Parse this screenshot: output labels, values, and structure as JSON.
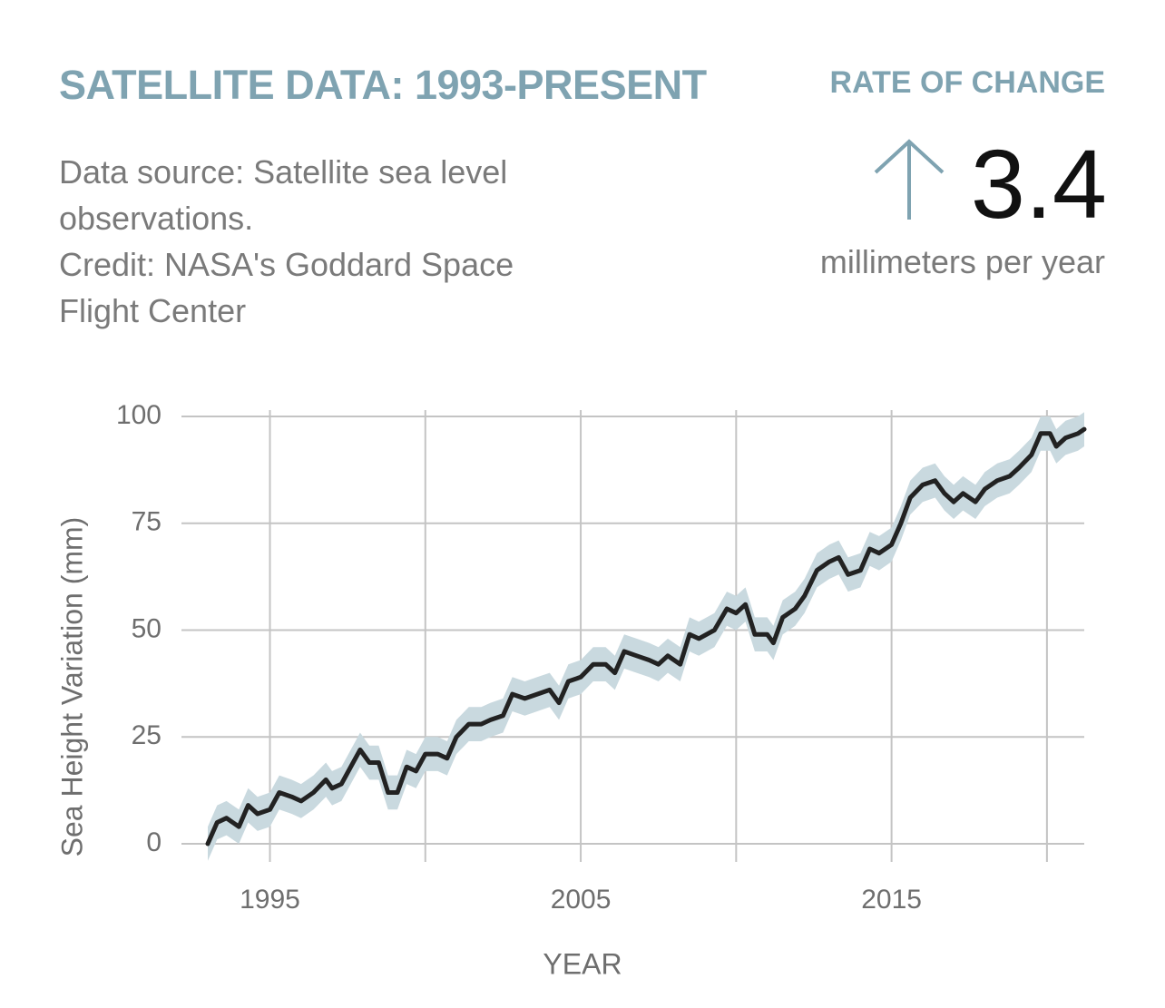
{
  "header": {
    "title": "SATELLITE DATA: 1993-PRESENT",
    "source": "Data source: Satellite sea level observations.",
    "credit": "Credit: NASA's Goddard Space Flight Center",
    "rate_label": "RATE OF CHANGE",
    "rate_value": 3.4,
    "rate_unit": "millimeters per year"
  },
  "chart_data": {
    "type": "line",
    "xlabel": "YEAR",
    "ylabel": "Sea Height Variation (mm)",
    "x": [
      1993.0,
      1993.3,
      1993.6,
      1994.0,
      1994.3,
      1994.6,
      1995.0,
      1995.3,
      1995.7,
      1996.0,
      1996.4,
      1996.8,
      1997.0,
      1997.3,
      1997.6,
      1997.9,
      1998.2,
      1998.5,
      1998.8,
      1999.1,
      1999.4,
      1999.7,
      2000.0,
      2000.4,
      2000.7,
      2001.0,
      2001.4,
      2001.8,
      2002.1,
      2002.5,
      2002.8,
      2003.2,
      2003.6,
      2004.0,
      2004.3,
      2004.6,
      2005.0,
      2005.4,
      2005.8,
      2006.1,
      2006.4,
      2006.8,
      2007.2,
      2007.5,
      2007.8,
      2008.2,
      2008.5,
      2008.8,
      2009.3,
      2009.7,
      2010.0,
      2010.3,
      2010.6,
      2011.0,
      2011.2,
      2011.5,
      2011.9,
      2012.2,
      2012.6,
      2013.0,
      2013.3,
      2013.6,
      2014.0,
      2014.3,
      2014.6,
      2015.0,
      2015.3,
      2015.6,
      2016.0,
      2016.4,
      2016.7,
      2017.0,
      2017.3,
      2017.7,
      2018.0,
      2018.4,
      2018.8,
      2019.1,
      2019.5,
      2019.8,
      2020.1,
      2020.3,
      2020.6,
      2021.0,
      2021.2
    ],
    "series": [
      {
        "name": "Sea height",
        "color": "#222222",
        "band_color": "#c9d9df",
        "uncertainty": 4,
        "values": [
          0,
          5,
          6,
          4,
          9,
          7,
          8,
          12,
          11,
          10,
          12,
          15,
          13,
          14,
          18,
          22,
          19,
          19,
          12,
          12,
          18,
          17,
          21,
          21,
          20,
          25,
          28,
          28,
          29,
          30,
          35,
          34,
          35,
          36,
          33,
          38,
          39,
          42,
          42,
          40,
          45,
          44,
          43,
          42,
          44,
          42,
          49,
          48,
          50,
          55,
          54,
          56,
          49,
          49,
          47,
          53,
          55,
          58,
          64,
          66,
          67,
          63,
          64,
          69,
          68,
          70,
          75,
          81,
          84,
          85,
          82,
          80,
          82,
          80,
          83,
          85,
          86,
          88,
          91,
          96,
          96,
          93,
          95,
          96,
          97
        ]
      }
    ],
    "xlim": [
      1993,
      2021.2
    ],
    "ylim": [
      0,
      100
    ],
    "xticks": [
      1995,
      {
        "value": 2000,
        "label": null
      },
      2005,
      {
        "value": 2010,
        "label": null
      },
      2015,
      {
        "value": 2020,
        "label": null
      }
    ],
    "yticks": [
      0,
      25,
      50,
      75,
      100
    ],
    "grid": true
  }
}
